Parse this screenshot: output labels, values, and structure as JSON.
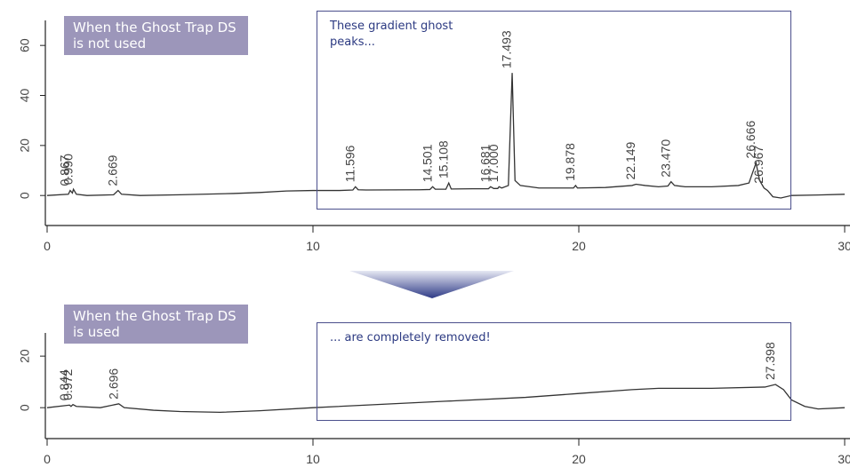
{
  "chart_data": [
    {
      "type": "line",
      "label": "When the Ghost Trap DS is not used",
      "annotation": "These gradient ghost peaks...",
      "xlim": [
        0,
        30
      ],
      "ylim": [
        -12,
        70
      ],
      "xticks": [
        0,
        10,
        20,
        30
      ],
      "yticks": [
        0,
        20,
        40,
        60
      ],
      "color": "#333333",
      "x": [
        0,
        0.8,
        0.867,
        0.95,
        0.99,
        1.1,
        1.5,
        2.5,
        2.669,
        2.8,
        3.5,
        5,
        7,
        8,
        9,
        10,
        11,
        11.5,
        11.596,
        11.7,
        12,
        14,
        14.4,
        14.501,
        14.6,
        15,
        15.108,
        15.2,
        16,
        16.6,
        16.681,
        16.8,
        16.95,
        17.0,
        17.1,
        17.35,
        17.493,
        17.6,
        17.8,
        18.5,
        19.8,
        19.878,
        19.95,
        21,
        22,
        22.149,
        22.5,
        23,
        23.35,
        23.47,
        23.6,
        24,
        25,
        26,
        26.4,
        26.666,
        26.8,
        26.967,
        27.1,
        27.3,
        27.6,
        28,
        29,
        30
      ],
      "values": [
        0,
        0.5,
        2,
        1,
        2.5,
        0.5,
        0,
        0.3,
        2,
        0.5,
        0,
        0.3,
        0.8,
        1.2,
        1.8,
        2,
        2,
        2.2,
        3.5,
        2.3,
        2.2,
        2.3,
        2.4,
        3.5,
        2.5,
        2.5,
        5,
        2.6,
        2.7,
        2.7,
        3.5,
        2.8,
        2.8,
        3.5,
        3,
        4,
        49,
        6,
        4,
        3,
        3,
        4,
        3,
        3.2,
        4,
        4.5,
        4,
        3.5,
        3.8,
        5.5,
        4,
        3.5,
        3.5,
        4,
        5,
        13,
        6,
        3,
        2,
        -0.5,
        -1,
        0,
        0.2,
        0.5
      ],
      "peaks": [
        {
          "value": 0.867,
          "label": "0.867"
        },
        {
          "value": 0.99,
          "label": "0.990"
        },
        {
          "value": 2.669,
          "label": "2.669"
        },
        {
          "value": 11.596,
          "label": "11.596"
        },
        {
          "value": 14.501,
          "label": "14.501"
        },
        {
          "value": 15.108,
          "label": "15.108"
        },
        {
          "value": 16.681,
          "label": "16.681"
        },
        {
          "value": 17.0,
          "label": "17.000"
        },
        {
          "value": 17.493,
          "label": "17.493"
        },
        {
          "value": 19.878,
          "label": "19.878"
        },
        {
          "value": 22.149,
          "label": "22.149"
        },
        {
          "value": 23.47,
          "label": "23.470"
        },
        {
          "value": 26.666,
          "label": "26.666"
        },
        {
          "value": 26.967,
          "label": "26.967"
        }
      ]
    },
    {
      "type": "line",
      "label": "When the Ghost Trap DS is used",
      "annotation": "... are completely removed!",
      "xlim": [
        0,
        30
      ],
      "ylim": [
        -12,
        29
      ],
      "xticks": [
        0,
        10,
        20,
        30
      ],
      "yticks": [
        0,
        20
      ],
      "color": "#333333",
      "x": [
        0,
        0.844,
        0.9,
        0.972,
        1.1,
        2,
        2.696,
        2.9,
        4,
        5,
        6.5,
        8,
        10,
        12,
        15,
        18,
        20,
        22,
        23,
        25,
        27,
        27.398,
        27.7,
        28,
        28.5,
        29,
        30
      ],
      "values": [
        0,
        1,
        0.5,
        1.2,
        0.5,
        0,
        1.5,
        0,
        -1,
        -1.5,
        -1.8,
        -1.2,
        0,
        1,
        2.5,
        4,
        5.5,
        7,
        7.5,
        7.5,
        8,
        9,
        7,
        3,
        0.5,
        -0.5,
        0
      ],
      "peaks": [
        {
          "value": 0.844,
          "label": "0.844"
        },
        {
          "value": 0.972,
          "label": "0.972"
        },
        {
          "value": 2.696,
          "label": "2.696"
        },
        {
          "value": 27.398,
          "label": "27.398"
        }
      ]
    }
  ]
}
